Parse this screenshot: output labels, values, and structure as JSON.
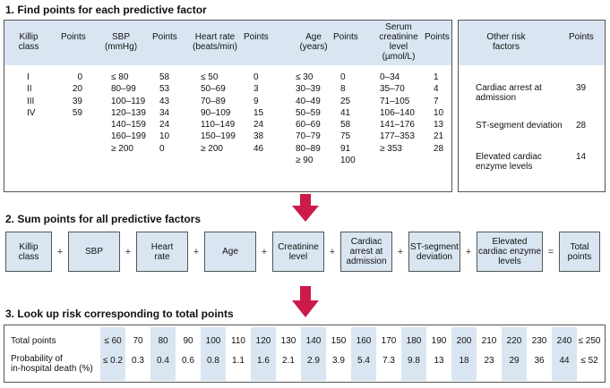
{
  "step1": {
    "title": "1. Find points for each predictive factor",
    "killip": {
      "header1": "Killip\nclass",
      "header2": "Points",
      "labels": [
        "I",
        "II",
        "III",
        "IV"
      ],
      "points": [
        "0",
        "20",
        "39",
        "59"
      ]
    },
    "sbp": {
      "header1": "SBP\n(mmHg)",
      "header2": "Points",
      "labels": [
        "≤ 80",
        "80–99",
        "100–119",
        "120–139",
        "140–159",
        "160–199",
        "≥ 200"
      ],
      "points": [
        "58",
        "53",
        "43",
        "34",
        "24",
        "10",
        "0"
      ]
    },
    "heart_rate": {
      "header1": "Heart rate\n(beats/min)",
      "header2": "Points",
      "labels": [
        "≤ 50",
        "50–69",
        "70–89",
        "90–109",
        "110–149",
        "150–199",
        "≥ 200"
      ],
      "points": [
        "0",
        "3",
        "9",
        "15",
        "24",
        "38",
        "46"
      ]
    },
    "age": {
      "header1": "Age\n(years)",
      "header2": "Points",
      "labels": [
        "≤ 30",
        "30–39",
        "40–49",
        "50–59",
        "60–69",
        "70–79",
        "80–89",
        "≥ 90"
      ],
      "points": [
        "0",
        "8",
        "25",
        "41",
        "58",
        "75",
        "91",
        "100"
      ]
    },
    "creatinine": {
      "header1": "Serum\ncreatinine\nlevel\n(µmol/L)",
      "header2": "Points",
      "labels": [
        "0–34",
        "35–70",
        "71–105",
        "106–140",
        "141–176",
        "177–353",
        "≥ 353"
      ],
      "points": [
        "1",
        "4",
        "7",
        "10",
        "13",
        "21",
        "28"
      ]
    },
    "other": {
      "header1": "Other risk\nfactors",
      "header2": "Points",
      "items": [
        {
          "label": "Cardiac arrest at\nadmission",
          "points": "39"
        },
        {
          "label": "ST-segment deviation",
          "points": "28"
        },
        {
          "label": "Elevated cardiac\nenzyme levels",
          "points": "14"
        }
      ]
    }
  },
  "step2": {
    "title": "2. Sum points for all predictive factors",
    "boxes": [
      "Killip\nclass",
      "SBP",
      "Heart\nrate",
      "Age",
      "Creatinine\nlevel",
      "Cardiac\narrest at\nadmission",
      "ST-segment\ndeviation",
      "Elevated\ncardiac enzyme\nlevels",
      "Total\npoints"
    ],
    "operators": [
      "+",
      "+",
      "+",
      "+",
      "+",
      "+",
      "+",
      "="
    ]
  },
  "step3": {
    "title": "3. Look up risk corresponding to total points",
    "row1_label": "Total points",
    "row2_label": "Probability of\nin-hospital death (%)",
    "total_points": [
      "≤ 60",
      "70",
      "80",
      "90",
      "100",
      "110",
      "120",
      "130",
      "140",
      "150",
      "160",
      "170",
      "180",
      "190",
      "200",
      "210",
      "220",
      "230",
      "240",
      "≤ 250"
    ],
    "probability": [
      "≤ 0.2",
      "0.3",
      "0.4",
      "0.6",
      "0.8",
      "1.1",
      "1.6",
      "2.1",
      "2.9",
      "3.9",
      "5.4",
      "7.3",
      "9.8",
      "13",
      "18",
      "23",
      "29",
      "36",
      "44",
      "≤ 52"
    ]
  },
  "colors": {
    "shade": "#d9e6f2",
    "arrow": "#cc1b4a",
    "border": "#555555"
  }
}
